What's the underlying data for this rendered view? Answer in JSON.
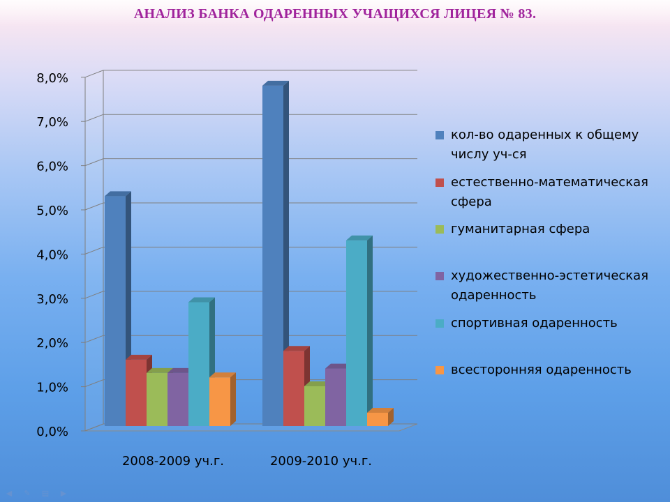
{
  "slide": {
    "title": "АНАЛИЗ БАНКА ОДАРЕННЫХ УЧАЩИХСЯ ЛИЦЕЯ № 83."
  },
  "chart_data": {
    "type": "bar",
    "style": "3d-clustered-column",
    "categories": [
      "2008-2009 уч.г.",
      "2009-2010 уч.г."
    ],
    "series": [
      {
        "name": "кол-во одаренных к общему числу уч-ся",
        "values": [
          5.2,
          7.7
        ],
        "color": "#4f81bd"
      },
      {
        "name": "естественно-математическая сфера",
        "values": [
          1.5,
          1.7
        ],
        "color": "#c0504d"
      },
      {
        "name": "гуманитарная сфера",
        "values": [
          1.2,
          0.9
        ],
        "color": "#9bbb59"
      },
      {
        "name": "художественно-эстетическая одаренность",
        "values": [
          1.2,
          1.3
        ],
        "color": "#8064a2"
      },
      {
        "name": "спортивная одаренность",
        "values": [
          2.8,
          4.2
        ],
        "color": "#4bacc6"
      },
      {
        "name": "всесторонняя одаренность",
        "values": [
          1.1,
          0.3
        ],
        "color": "#f79646"
      }
    ],
    "y_ticks": [
      "0,0%",
      "1,0%",
      "2,0%",
      "3,0%",
      "4,0%",
      "5,0%",
      "6,0%",
      "7,0%",
      "8,0%"
    ],
    "ylim": [
      0,
      8
    ],
    "value_unit": "%",
    "grid": true,
    "legend_position": "right"
  },
  "nav_icons": [
    "back-icon",
    "pen-icon",
    "menu-icon",
    "forward-icon"
  ]
}
